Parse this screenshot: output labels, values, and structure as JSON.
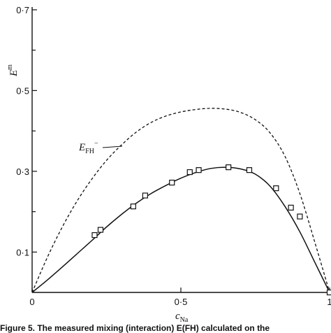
{
  "chart_data": {
    "type": "line",
    "xlabel": "c",
    "xlabel_sub": "Na",
    "ylabel": "E",
    "ylabel_sup": "m",
    "xlim": [
      0,
      1
    ],
    "ylim": [
      0,
      0.7
    ],
    "x_ticks": [
      0,
      0.5,
      1
    ],
    "x_tick_labels": [
      "0",
      "0·5",
      "1"
    ],
    "y_ticks": [
      0.1,
      0.3,
      0.5,
      0.7
    ],
    "y_tick_labels": [
      "0·1",
      "0·3",
      "0·5",
      "0·7"
    ],
    "series": [
      {
        "name": "E",
        "label_sub": "FH",
        "label_sup": "−",
        "style": "dashed",
        "x": [
          0,
          0.05,
          0.1,
          0.15,
          0.2,
          0.25,
          0.3,
          0.35,
          0.4,
          0.45,
          0.5,
          0.55,
          0.6,
          0.65,
          0.7,
          0.75,
          0.8,
          0.85,
          0.9,
          0.95,
          1.0
        ],
        "y": [
          0,
          0.085,
          0.16,
          0.225,
          0.28,
          0.327,
          0.365,
          0.397,
          0.421,
          0.437,
          0.447,
          0.453,
          0.456,
          0.454,
          0.446,
          0.428,
          0.395,
          0.337,
          0.245,
          0.125,
          0
        ]
      },
      {
        "style": "solid",
        "x": [
          0,
          0.05,
          0.1,
          0.15,
          0.2,
          0.25,
          0.3,
          0.35,
          0.4,
          0.45,
          0.5,
          0.55,
          0.6,
          0.65,
          0.7,
          0.75,
          0.8,
          0.85,
          0.9,
          0.95,
          1.0
        ],
        "y": [
          0,
          0.03,
          0.062,
          0.095,
          0.128,
          0.162,
          0.193,
          0.221,
          0.245,
          0.265,
          0.283,
          0.297,
          0.307,
          0.31,
          0.306,
          0.293,
          0.263,
          0.213,
          0.15,
          0.075,
          0
        ]
      },
      {
        "style": "markers",
        "marker": "square",
        "x": [
          0.21,
          0.23,
          0.34,
          0.38,
          0.47,
          0.53,
          0.56,
          0.66,
          0.73,
          0.82,
          0.87,
          0.9,
          1.0
        ],
        "y": [
          0.142,
          0.155,
          0.213,
          0.24,
          0.272,
          0.298,
          0.303,
          0.31,
          0.303,
          0.258,
          0.21,
          0.188,
          0
        ]
      }
    ]
  },
  "caption": "Figure 5. The measured mixing (interaction) E(FH) calculated on the"
}
